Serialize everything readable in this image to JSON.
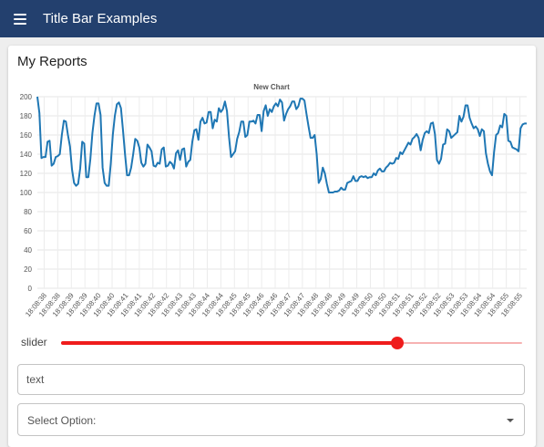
{
  "appbar": {
    "title": "Title Bar Examples",
    "menu_icon": "menu-icon"
  },
  "card": {
    "title": "My Reports"
  },
  "chart_data": {
    "type": "line",
    "title": "New Chart",
    "xlabel": "",
    "ylabel": "",
    "ylim": [
      0,
      200
    ],
    "yticks": [
      0,
      20,
      40,
      60,
      80,
      100,
      120,
      140,
      160,
      180,
      200
    ],
    "grid": true,
    "color": "#1f77b4",
    "tick_labels": [
      "18:08:38",
      "18:08:38",
      "18:08:39",
      "18:08:39",
      "18:08:40",
      "18:08:40",
      "18:08:41",
      "18:08:41",
      "18:08:42",
      "18:08:42",
      "18:08:43",
      "18:08:43",
      "18:08:44",
      "18:08:44",
      "18:08:45",
      "18:08:45",
      "18:08:46",
      "18:08:46",
      "18:08:47",
      "18:08:47",
      "18:08:48",
      "18:08:48",
      "18:08:49",
      "18:08:49",
      "18:08:50",
      "18:08:50",
      "18:08:51",
      "18:08:51",
      "18:08:52",
      "18:08:52",
      "18:08:53",
      "18:08:53",
      "18:08:54",
      "18:08:54",
      "18:08:55",
      "18:08:55"
    ],
    "series": [
      {
        "values": [
          200,
          183,
          136,
          137,
          137,
          153,
          154,
          128,
          130,
          137,
          138,
          140,
          160,
          175,
          174,
          160,
          148,
          124,
          110,
          107,
          109,
          125,
          153,
          151,
          116,
          116,
          135,
          162,
          180,
          193,
          193,
          181,
          126,
          110,
          107,
          107,
          130,
          160,
          180,
          192,
          194,
          188,
          165,
          140,
          118,
          118,
          126,
          140,
          156,
          154,
          147,
          131,
          127,
          130,
          150,
          147,
          143,
          128,
          127,
          131,
          130,
          145,
          147,
          127,
          128,
          132,
          130,
          125,
          141,
          144,
          134,
          145,
          146,
          127,
          132,
          134,
          153,
          165,
          166,
          155,
          174,
          178,
          172,
          173,
          184,
          184,
          167,
          176,
          174,
          188,
          184,
          187,
          195,
          185,
          158,
          137,
          140,
          143,
          156,
          163,
          174,
          174,
          158,
          160,
          174,
          174,
          175,
          172,
          181,
          181,
          164,
          185,
          191,
          180,
          187,
          184,
          190,
          193,
          190,
          197,
          194,
          175,
          182,
          187,
          190,
          195,
          195,
          187,
          190,
          198,
          198,
          196,
          182,
          169,
          157,
          157,
          160,
          140,
          110,
          114,
          126,
          120,
          109,
          100,
          100,
          100,
          101,
          101,
          102,
          105,
          103,
          103,
          110,
          111,
          112,
          117,
          112,
          112,
          116,
          117,
          116,
          117,
          115,
          116,
          116,
          120,
          118,
          123,
          125,
          122,
          122,
          126,
          128,
          131,
          130,
          131,
          136,
          135,
          142,
          140,
          144,
          148,
          152,
          150,
          156,
          158,
          161,
          157,
          144,
          155,
          162,
          164,
          162,
          172,
          173,
          161,
          134,
          130,
          135,
          150,
          151,
          166,
          164,
          157,
          159,
          161,
          163,
          180,
          174,
          179,
          191,
          191,
          178,
          172,
          167,
          169,
          166,
          159,
          166,
          164,
          141,
          130,
          122,
          118,
          142,
          160,
          162,
          170,
          168,
          182,
          180,
          154,
          153,
          147,
          146,
          145,
          143,
          167,
          171,
          172,
          172
        ]
      }
    ]
  },
  "slider": {
    "label": "slider",
    "value_fraction": 0.73,
    "color": "#ef1c1c"
  },
  "text_field": {
    "placeholder": "text"
  },
  "select": {
    "label": "Select Option:",
    "icon": "caret-down-icon"
  }
}
